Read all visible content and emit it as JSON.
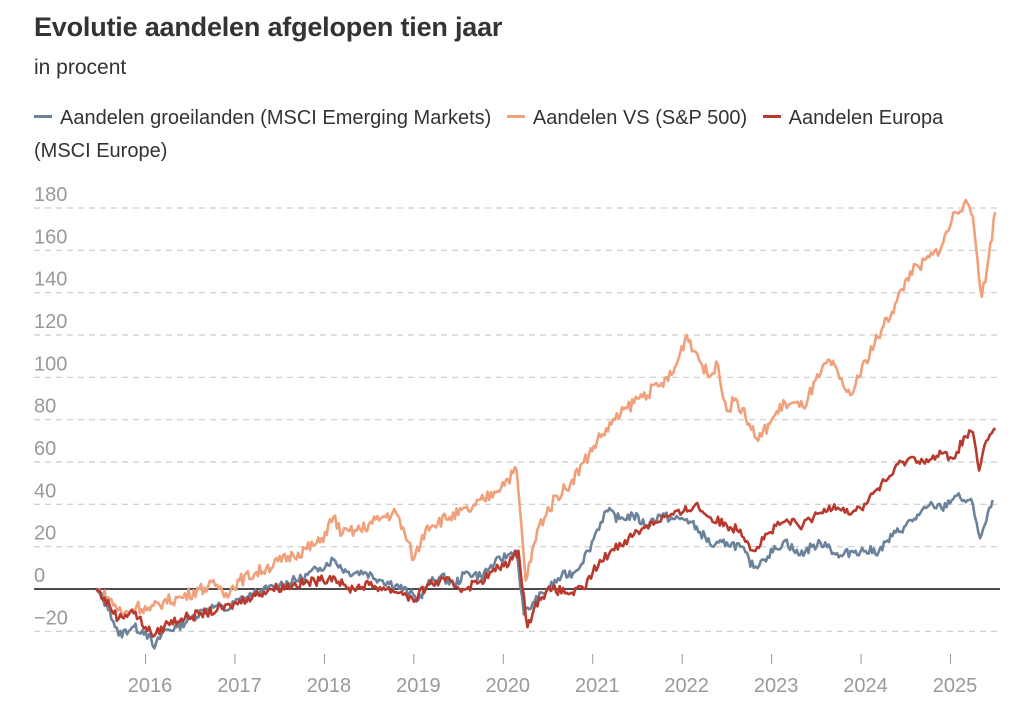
{
  "header": {
    "title": "Evolutie aandelen afgelopen tien jaar",
    "subtitle": "in procent"
  },
  "legend": [
    {
      "label": "Aandelen groeilanden (MSCI Emerging Markets)",
      "color": "#6b829b"
    },
    {
      "label": "Aandelen VS (S&P 500)",
      "color": "#f0a07a"
    },
    {
      "label": "Aandelen Europa (MSCI Europe)",
      "color": "#b83a2e"
    }
  ],
  "chart_data": {
    "type": "line",
    "title": "Evolutie aandelen afgelopen tien jaar",
    "subtitle": "in procent",
    "xlabel": "",
    "ylabel": "",
    "xlim": [
      2015.4,
      2025.45
    ],
    "ylim": [
      -30,
      190
    ],
    "y_ticks": [
      -20,
      0,
      20,
      40,
      60,
      80,
      100,
      120,
      140,
      160,
      180
    ],
    "y_tick_labels": [
      "−20",
      "0",
      "20",
      "40",
      "60",
      "80",
      "100",
      "120",
      "140",
      "160",
      "180"
    ],
    "x_ticks": [
      2016,
      2017,
      2018,
      2019,
      2020,
      2021,
      2022,
      2023,
      2024,
      2025
    ],
    "x_tick_labels": [
      "2016",
      "2017",
      "2018",
      "2019",
      "2020",
      "2021",
      "2022",
      "2023",
      "2024",
      "2025"
    ],
    "grid": "horizontal dashed",
    "legend_position": "top",
    "series": [
      {
        "name": "Aandelen groeilanden (MSCI Emerging Markets)",
        "color": "#6b829b",
        "points": [
          [
            2015.4,
            0
          ],
          [
            2015.55,
            -10
          ],
          [
            2015.65,
            -22
          ],
          [
            2015.8,
            -18
          ],
          [
            2015.95,
            -20
          ],
          [
            2016.05,
            -28
          ],
          [
            2016.15,
            -20
          ],
          [
            2016.3,
            -18
          ],
          [
            2016.45,
            -14
          ],
          [
            2016.6,
            -10
          ],
          [
            2016.75,
            -8
          ],
          [
            2016.85,
            -10
          ],
          [
            2017.0,
            -5
          ],
          [
            2017.2,
            -2
          ],
          [
            2017.45,
            2
          ],
          [
            2017.7,
            5
          ],
          [
            2017.9,
            10
          ],
          [
            2018.05,
            14
          ],
          [
            2018.2,
            8
          ],
          [
            2018.4,
            8
          ],
          [
            2018.6,
            4
          ],
          [
            2018.75,
            2
          ],
          [
            2018.9,
            -2
          ],
          [
            2019.0,
            -5
          ],
          [
            2019.1,
            2
          ],
          [
            2019.25,
            6
          ],
          [
            2019.4,
            2
          ],
          [
            2019.55,
            8
          ],
          [
            2019.7,
            6
          ],
          [
            2019.85,
            12
          ],
          [
            2020.0,
            16
          ],
          [
            2020.1,
            18
          ],
          [
            2020.18,
            -12
          ],
          [
            2020.3,
            -6
          ],
          [
            2020.45,
            0
          ],
          [
            2020.6,
            6
          ],
          [
            2020.75,
            8
          ],
          [
            2020.9,
            18
          ],
          [
            2021.0,
            28
          ],
          [
            2021.1,
            37
          ],
          [
            2021.25,
            33
          ],
          [
            2021.4,
            35
          ],
          [
            2021.55,
            30
          ],
          [
            2021.7,
            35
          ],
          [
            2021.85,
            33
          ],
          [
            2022.0,
            33
          ],
          [
            2022.15,
            27
          ],
          [
            2022.3,
            20
          ],
          [
            2022.45,
            22
          ],
          [
            2022.6,
            20
          ],
          [
            2022.75,
            10
          ],
          [
            2022.85,
            14
          ],
          [
            2023.0,
            19
          ],
          [
            2023.1,
            23
          ],
          [
            2023.25,
            16
          ],
          [
            2023.4,
            20
          ],
          [
            2023.55,
            22
          ],
          [
            2023.7,
            15
          ],
          [
            2023.85,
            18
          ],
          [
            2024.0,
            18
          ],
          [
            2024.15,
            18
          ],
          [
            2024.3,
            25
          ],
          [
            2024.45,
            30
          ],
          [
            2024.6,
            35
          ],
          [
            2024.75,
            40
          ],
          [
            2024.85,
            38
          ],
          [
            2025.0,
            44
          ],
          [
            2025.1,
            42
          ],
          [
            2025.2,
            40
          ],
          [
            2025.28,
            24
          ],
          [
            2025.35,
            32
          ],
          [
            2025.42,
            42
          ]
        ]
      },
      {
        "name": "Aandelen VS (S&P 500)",
        "color": "#f0a07a",
        "points": [
          [
            2015.4,
            0
          ],
          [
            2015.55,
            -5
          ],
          [
            2015.7,
            -12
          ],
          [
            2015.85,
            -8
          ],
          [
            2016.0,
            -10
          ],
          [
            2016.15,
            -6
          ],
          [
            2016.35,
            -4
          ],
          [
            2016.55,
            0
          ],
          [
            2016.75,
            2
          ],
          [
            2016.85,
            -2
          ],
          [
            2017.0,
            4
          ],
          [
            2017.3,
            10
          ],
          [
            2017.6,
            16
          ],
          [
            2017.9,
            22
          ],
          [
            2018.05,
            34
          ],
          [
            2018.15,
            26
          ],
          [
            2018.35,
            28
          ],
          [
            2018.6,
            34
          ],
          [
            2018.75,
            36
          ],
          [
            2018.85,
            26
          ],
          [
            2018.95,
            14
          ],
          [
            2019.1,
            30
          ],
          [
            2019.35,
            34
          ],
          [
            2019.6,
            38
          ],
          [
            2019.85,
            46
          ],
          [
            2020.0,
            52
          ],
          [
            2020.1,
            56
          ],
          [
            2020.2,
            4
          ],
          [
            2020.35,
            30
          ],
          [
            2020.55,
            44
          ],
          [
            2020.7,
            50
          ],
          [
            2020.85,
            60
          ],
          [
            2021.0,
            70
          ],
          [
            2021.2,
            80
          ],
          [
            2021.45,
            90
          ],
          [
            2021.7,
            96
          ],
          [
            2021.85,
            102
          ],
          [
            2022.0,
            120
          ],
          [
            2022.1,
            112
          ],
          [
            2022.25,
            100
          ],
          [
            2022.35,
            106
          ],
          [
            2022.45,
            84
          ],
          [
            2022.55,
            90
          ],
          [
            2022.7,
            78
          ],
          [
            2022.8,
            70
          ],
          [
            2022.95,
            80
          ],
          [
            2023.1,
            88
          ],
          [
            2023.3,
            86
          ],
          [
            2023.5,
            102
          ],
          [
            2023.6,
            108
          ],
          [
            2023.75,
            96
          ],
          [
            2023.85,
            92
          ],
          [
            2024.0,
            108
          ],
          [
            2024.2,
            124
          ],
          [
            2024.35,
            136
          ],
          [
            2024.5,
            150
          ],
          [
            2024.6,
            152
          ],
          [
            2024.75,
            158
          ],
          [
            2024.85,
            162
          ],
          [
            2025.0,
            178
          ],
          [
            2025.1,
            182
          ],
          [
            2025.2,
            176
          ],
          [
            2025.25,
            156
          ],
          [
            2025.3,
            138
          ],
          [
            2025.36,
            152
          ],
          [
            2025.45,
            178
          ]
        ]
      },
      {
        "name": "Aandelen Europa (MSCI Europe)",
        "color": "#b83a2e",
        "points": [
          [
            2015.4,
            0
          ],
          [
            2015.55,
            -8
          ],
          [
            2015.65,
            -14
          ],
          [
            2015.8,
            -10
          ],
          [
            2015.95,
            -18
          ],
          [
            2016.05,
            -22
          ],
          [
            2016.2,
            -16
          ],
          [
            2016.35,
            -14
          ],
          [
            2016.55,
            -12
          ],
          [
            2016.75,
            -10
          ],
          [
            2016.9,
            -8
          ],
          [
            2017.1,
            -4
          ],
          [
            2017.35,
            0
          ],
          [
            2017.6,
            2
          ],
          [
            2017.9,
            4
          ],
          [
            2018.05,
            6
          ],
          [
            2018.2,
            0
          ],
          [
            2018.45,
            2
          ],
          [
            2018.65,
            0
          ],
          [
            2018.85,
            -2
          ],
          [
            2018.95,
            -6
          ],
          [
            2019.1,
            2
          ],
          [
            2019.3,
            4
          ],
          [
            2019.5,
            0
          ],
          [
            2019.7,
            4
          ],
          [
            2019.9,
            10
          ],
          [
            2020.05,
            14
          ],
          [
            2020.12,
            18
          ],
          [
            2020.22,
            -18
          ],
          [
            2020.35,
            -4
          ],
          [
            2020.5,
            0
          ],
          [
            2020.7,
            -2
          ],
          [
            2020.85,
            0
          ],
          [
            2020.95,
            8
          ],
          [
            2021.15,
            18
          ],
          [
            2021.35,
            24
          ],
          [
            2021.55,
            30
          ],
          [
            2021.75,
            34
          ],
          [
            2021.95,
            36
          ],
          [
            2022.1,
            40
          ],
          [
            2022.25,
            34
          ],
          [
            2022.45,
            30
          ],
          [
            2022.6,
            28
          ],
          [
            2022.75,
            18
          ],
          [
            2022.9,
            26
          ],
          [
            2023.1,
            32
          ],
          [
            2023.3,
            30
          ],
          [
            2023.5,
            36
          ],
          [
            2023.65,
            40
          ],
          [
            2023.85,
            36
          ],
          [
            2023.95,
            38
          ],
          [
            2024.1,
            46
          ],
          [
            2024.25,
            52
          ],
          [
            2024.4,
            60
          ],
          [
            2024.55,
            62
          ],
          [
            2024.7,
            60
          ],
          [
            2024.85,
            64
          ],
          [
            2025.0,
            62
          ],
          [
            2025.1,
            72
          ],
          [
            2025.2,
            74
          ],
          [
            2025.27,
            56
          ],
          [
            2025.35,
            70
          ],
          [
            2025.45,
            76
          ]
        ]
      }
    ]
  }
}
